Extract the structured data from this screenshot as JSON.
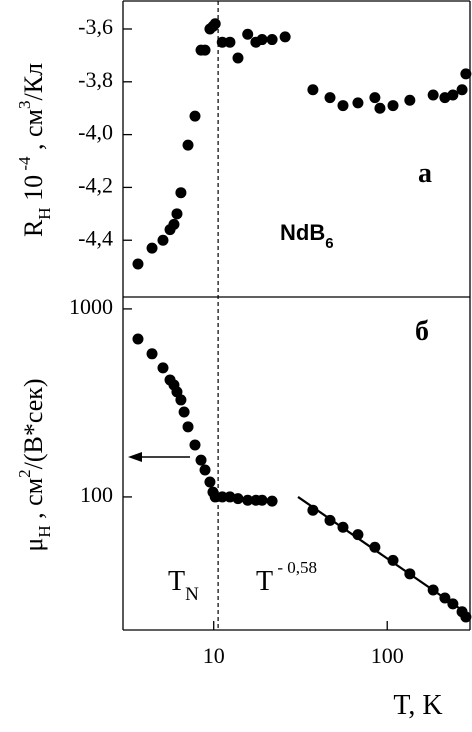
{
  "chart_data": [
    {
      "type": "scatter",
      "xscale": "log",
      "xlim": [
        3,
        300
      ],
      "ylim": [
        -4.615,
        -3.494
      ],
      "yticks": [
        {
          "value": -3.6,
          "label": "-3,6"
        },
        {
          "value": -3.8,
          "label": "-3,8"
        },
        {
          "value": -4.0,
          "label": "-4,0"
        },
        {
          "value": -4.2,
          "label": "-4,2"
        },
        {
          "value": -4.4,
          "label": "-4,4"
        }
      ],
      "y_label": {
        "main": "R",
        "sub": "H",
        "mid": " 10",
        "sup": " -4",
        "unit": " ,  см",
        "unit_sup": "3",
        "unit_end": "/Кл"
      },
      "panel_label": "а",
      "annotation": {
        "main": "NdB",
        "sub": "6"
      },
      "color": "#000000",
      "x": [
        3.66,
        4.41,
        5.1,
        5.6,
        5.9,
        6.14,
        6.47,
        7.11,
        7.8,
        8.45,
        8.91,
        9.51,
        9.9,
        10.2,
        11.2,
        12.4,
        13.8,
        15.7,
        17.5,
        19.0,
        21.7,
        25.8,
        37.3,
        46.8,
        55.6,
        67.8,
        84.9,
        90.8,
        108,
        135,
        184,
        215,
        239,
        270,
        284
      ],
      "values": [
        -4.49,
        -4.43,
        -4.4,
        -4.36,
        -4.34,
        -4.3,
        -4.22,
        -4.04,
        -3.93,
        -3.68,
        -3.68,
        -3.6,
        -3.59,
        -3.58,
        -3.65,
        -3.65,
        -3.71,
        -3.62,
        -3.65,
        -3.64,
        -3.64,
        -3.63,
        -3.83,
        -3.86,
        -3.89,
        -3.88,
        -3.86,
        -3.9,
        -3.89,
        -3.87,
        -3.85,
        -3.86,
        -3.85,
        -3.83,
        -3.77
      ]
    },
    {
      "type": "scatter",
      "xscale": "log",
      "yscale": "log",
      "xlim": [
        3,
        300
      ],
      "ylim": [
        19.6,
        1157
      ],
      "xticks": [
        10,
        100
      ],
      "yticks": [
        100,
        1000
      ],
      "x_label": "T, K",
      "y_label": {
        "main": "μ",
        "sub": "H",
        "unit": " ,  см",
        "unit_sup": "2",
        "unit_end": "/(В*сек)"
      },
      "panel_label": "б",
      "color": "#000000",
      "tn_label": {
        "main": "T",
        "sub": "N"
      },
      "fit_label": {
        "main": "T",
        "sup": " - 0,58"
      },
      "x": [
        3.66,
        4.41,
        5.1,
        5.6,
        5.9,
        6.14,
        6.47,
        6.75,
        7.11,
        7.8,
        8.45,
        8.91,
        9.51,
        9.9,
        10.2,
        11.2,
        12.4,
        13.8,
        15.7,
        17.5,
        19.0,
        21.7,
        37.3,
        46.8,
        55.6,
        67.8,
        84.9,
        108,
        135,
        184,
        215,
        239,
        270,
        284
      ],
      "values": [
        692,
        577,
        486,
        419,
        394,
        362,
        328,
        283,
        236,
        189,
        157,
        139,
        120,
        106,
        100,
        100,
        100,
        98,
        96,
        96,
        96,
        95,
        85,
        75,
        69,
        63,
        54,
        46,
        39,
        32,
        29,
        27,
        24.5,
        23
      ],
      "fit": {
        "x": [
          30.6,
          270
        ],
        "values": [
          100,
          25
        ]
      }
    }
  ],
  "marker_x": 10.6
}
